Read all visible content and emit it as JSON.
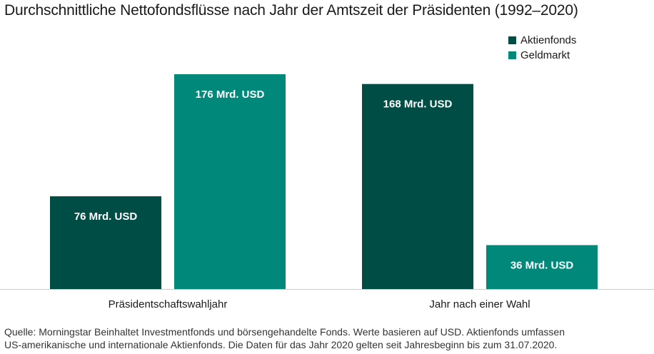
{
  "title": "Durchschnittliche Nettofondsflüsse nach Jahr der Amtszeit der Präsidenten (1992–2020)",
  "colors": {
    "aktienfonds": "#004d45",
    "geldmarkt": "#00897b",
    "axis": "#cccccc",
    "bar_label": "#ffffff"
  },
  "chart_data": {
    "type": "bar",
    "title": "Durchschnittliche Nettofondsflüsse nach Jahr der Amtszeit der Präsidenten (1992–2020)",
    "xlabel": "",
    "ylabel": "",
    "categories": [
      "Präsidentschaftswahljahr",
      "Jahr nach einer Wahl"
    ],
    "series": [
      {
        "name": "Aktienfonds",
        "values": [
          76,
          168
        ],
        "labels": [
          "76 Mrd. USD",
          "168 Mrd. USD"
        ],
        "color": "#004d45"
      },
      {
        "name": "Geldmarkt",
        "values": [
          176,
          36
        ],
        "labels": [
          "176 Mrd. USD",
          "36 Mrd. USD"
        ],
        "color": "#00897b"
      }
    ],
    "ylim": [
      0,
      176
    ],
    "grid": false,
    "legend": "top-right"
  },
  "source": {
    "line1": "Quelle: Morningstar Beinhaltet Investmentfonds und börsengehandelte Fonds. Werte basieren auf USD. Aktienfonds umfassen",
    "line2": "US-amerikanische und internationale Aktienfonds. Die Daten für das Jahr 2020 gelten seit Jahresbeginn bis zum 31.07.2020."
  }
}
